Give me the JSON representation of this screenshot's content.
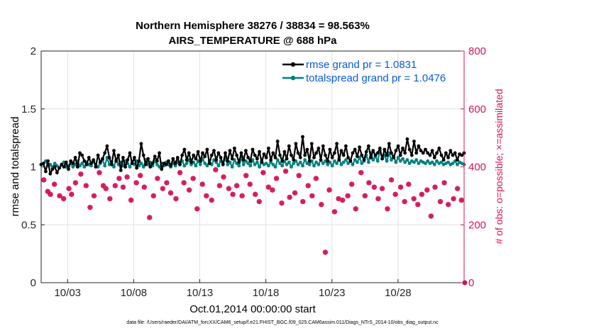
{
  "chart_data": {
    "type": "line",
    "title": "Northern Hemisphere 38276 / 38834 = 98.563%",
    "subtitle": "AIRS_TEMPERATURE @ 688 hPa",
    "xlabel": "Oct.01,2014 00:00:00 start",
    "ylabel": "rmse and totalspread",
    "ylabel_right": "# of obs: o=possible; ×=assimilated",
    "x_ticks": [
      "10/03",
      "10/08",
      "10/13",
      "10/18",
      "10/23",
      "10/28"
    ],
    "x_tick_days": [
      3,
      8,
      13,
      18,
      23,
      28
    ],
    "xlim": [
      1,
      33
    ],
    "ylim": [
      0,
      2
    ],
    "y_ticks": [
      "0",
      "0.5",
      "1",
      "1.5",
      "2"
    ],
    "ylim_right": [
      0,
      800
    ],
    "y_ticks_right": [
      "0",
      "200",
      "400",
      "600",
      "800"
    ],
    "grid": true,
    "legend_position": "top-right",
    "colors": {
      "rmse": "#000000",
      "totalspread": "#008080",
      "obs": "#d4145a",
      "legend_text": "#0a5bd6"
    },
    "series": [
      {
        "name": "rmse grand pr = 1.0831",
        "axis": "left",
        "values": [
          1.02,
          1.03,
          0.96,
          1.05,
          0.94,
          0.98,
          1.0,
          0.95,
          0.99,
          1.02,
          1.0,
          1.04,
          0.98,
          1.05,
          1.03,
          1.08,
          1.0,
          1.12,
          1.1,
          1.05,
          1.02,
          1.08,
          1.03,
          1.06,
          1.0,
          1.1,
          1.04,
          1.07,
          1.12,
          1.18,
          1.08,
          1.02,
          1.14,
          1.05,
          1.1,
          0.97,
          1.08,
          1.0,
          1.06,
          1.12,
          1.03,
          1.08,
          0.99,
          1.05,
          1.2,
          1.1,
          1.02,
          1.07,
          1.0,
          1.03,
          1.09,
          1.05,
          1.12,
          0.98,
          1.03,
          1.02,
          1.05,
          1.01,
          1.07,
          1.03,
          1.08,
          1.02,
          1.1,
          1.15,
          1.06,
          1.12,
          1.04,
          1.1,
          1.07,
          1.13,
          1.05,
          1.12,
          1.09,
          1.15,
          1.03,
          1.1,
          1.14,
          1.06,
          1.12,
          1.08,
          1.02,
          1.12,
          1.05,
          1.14,
          1.07,
          1.16,
          1.1,
          1.04,
          1.12,
          1.06,
          1.14,
          1.08,
          1.05,
          1.15,
          1.1,
          1.07,
          1.13,
          1.04,
          1.11,
          1.08,
          1.16,
          1.06,
          1.12,
          1.08,
          1.22,
          1.1,
          1.05,
          1.13,
          1.07,
          1.18,
          1.1,
          1.06,
          1.2,
          1.12,
          1.08,
          1.26,
          1.1,
          1.15,
          1.05,
          1.2,
          1.08,
          1.12,
          1.16,
          1.06,
          1.18,
          1.1,
          1.05,
          1.15,
          1.08,
          1.12,
          1.2,
          1.06,
          1.14,
          1.1,
          1.18,
          1.08,
          1.05,
          1.12,
          1.15,
          1.09,
          1.17,
          1.1,
          1.06,
          1.13,
          1.18,
          1.08,
          1.14,
          1.1,
          1.12,
          1.16,
          1.07,
          1.15,
          1.1,
          1.2,
          1.12,
          1.08,
          1.14,
          1.18,
          1.1,
          1.16,
          1.12,
          1.24,
          1.15,
          1.1,
          1.22,
          1.12,
          1.18,
          1.14,
          1.12,
          1.15,
          1.12,
          1.1,
          1.14,
          1.08,
          1.12,
          1.16,
          1.1,
          1.06,
          1.12,
          1.08,
          1.14,
          1.1,
          1.12,
          1.06,
          1.11,
          1.1,
          1.12
        ]
      },
      {
        "name": "totalspread grand pr = 1.0476",
        "axis": "left",
        "values": [
          1.02,
          1.03,
          1.05,
          1.01,
          1.02,
          1.0,
          1.03,
          1.01,
          0.99,
          1.02,
          1.04,
          1.0,
          1.01,
          1.03,
          1.0,
          1.02,
          1.05,
          1.01,
          1.03,
          1.0,
          1.04,
          1.02,
          1.01,
          1.05,
          1.02,
          1.0,
          1.03,
          1.06,
          1.01,
          1.08,
          1.02,
          1.04,
          1.0,
          1.06,
          1.02,
          1.04,
          1.01,
          1.05,
          1.03,
          1.0,
          1.04,
          1.02,
          1.05,
          1.01,
          1.03,
          1.0,
          1.06,
          1.02,
          1.04,
          1.01,
          1.05,
          1.02,
          1.0,
          1.03,
          1.01,
          1.04,
          1.02,
          1.0,
          1.03,
          1.01,
          1.04,
          1.02,
          1.05,
          1.01,
          1.03,
          1.06,
          1.02,
          1.04,
          1.01,
          1.05,
          1.02,
          1.07,
          1.03,
          1.01,
          1.05,
          1.02,
          1.06,
          1.04,
          1.01,
          1.05,
          1.03,
          1.07,
          1.02,
          1.04,
          1.0,
          1.06,
          1.03,
          1.01,
          1.08,
          1.02,
          1.05,
          1.03,
          1.01,
          1.06,
          1.02,
          1.04,
          1.0,
          1.05,
          1.02,
          1.03,
          1.01,
          1.04,
          1.02,
          1.0,
          1.06,
          1.03,
          1.01,
          1.05,
          1.02,
          1.04,
          1.0,
          1.03,
          1.05,
          1.02,
          1.04,
          1.01,
          1.06,
          1.03,
          1.02,
          1.05,
          1.01,
          1.04,
          1.02,
          1.06,
          1.03,
          1.05,
          1.02,
          1.04,
          1.01,
          1.05,
          1.03,
          1.07,
          1.02,
          1.04,
          1.06,
          1.03,
          1.05,
          1.02,
          1.06,
          1.04,
          1.08,
          1.03,
          1.05,
          1.1,
          1.04,
          1.12,
          1.06,
          1.09,
          1.05,
          1.14,
          1.07,
          1.1,
          1.05,
          1.12,
          1.06,
          1.09,
          1.04,
          1.08,
          1.05,
          1.07,
          1.04,
          1.06,
          1.03,
          1.05,
          1.04,
          1.06,
          1.03,
          1.05,
          1.04,
          1.03,
          1.05,
          1.03,
          1.04,
          1.02,
          1.05,
          1.03,
          1.04,
          1.02,
          1.03,
          1.04,
          1.02,
          1.03,
          1.05,
          1.02,
          1.04,
          1.03,
          1.02
        ]
      },
      {
        "name": "# of obs",
        "axis": "right",
        "marker": "o-and-x",
        "x": [
          1.2,
          1.5,
          1.7,
          2.0,
          2.4,
          2.7,
          3.1,
          3.3,
          3.6,
          4.0,
          4.4,
          4.7,
          5.0,
          5.4,
          5.7,
          5.9,
          6.2,
          6.6,
          6.9,
          7.2,
          7.5,
          7.8,
          8.2,
          8.5,
          8.8,
          9.2,
          9.5,
          9.8,
          10.2,
          10.5,
          10.8,
          11.2,
          11.5,
          11.8,
          12.2,
          12.5,
          12.8,
          13.2,
          13.5,
          13.9,
          14.2,
          14.5,
          14.8,
          15.2,
          15.5,
          15.8,
          16.2,
          16.5,
          16.8,
          17.2,
          17.5,
          17.8,
          18.2,
          18.5,
          18.8,
          19.2,
          19.5,
          19.8,
          20.2,
          20.5,
          20.8,
          21.2,
          21.5,
          21.8,
          22.2,
          22.5,
          22.8,
          23.2,
          23.5,
          23.8,
          24.2,
          24.5,
          24.8,
          25.2,
          25.5,
          25.8,
          26.2,
          26.5,
          26.8,
          27.2,
          27.5,
          27.8,
          28.2,
          28.5,
          28.8,
          29.2,
          29.5,
          29.8,
          30.2,
          30.5,
          30.8,
          31.2,
          31.5,
          31.8,
          32.2,
          32.5,
          32.8
        ],
        "values": [
          355,
          315,
          305,
          340,
          300,
          290,
          325,
          305,
          345,
          375,
          335,
          260,
          300,
          380,
          335,
          325,
          290,
          335,
          360,
          330,
          365,
          285,
          345,
          370,
          330,
          225,
          300,
          360,
          325,
          345,
          310,
          290,
          380,
          345,
          320,
          360,
          255,
          340,
          300,
          285,
          390,
          335,
          365,
          325,
          305,
          335,
          300,
          370,
          340,
          305,
          280,
          380,
          330,
          320,
          360,
          275,
          385,
          295,
          310,
          370,
          280,
          335,
          300,
          360,
          270,
          105,
          320,
          245,
          290,
          285,
          300,
          340,
          255,
          380,
          300,
          345,
          330,
          290,
          325,
          255,
          355,
          305,
          330,
          280,
          340,
          290,
          270,
          305,
          320,
          230,
          330,
          280,
          345,
          270,
          290,
          325,
          285
        ]
      }
    ],
    "footnote": "data file: /Users/raeder/DAI/ATM_forcXX/CAM6_setup/f.e21.FHIST_BGC.f09_025.CAM6assim.011/Diags_NTrS_2014-10/obs_diag_output.nc"
  }
}
